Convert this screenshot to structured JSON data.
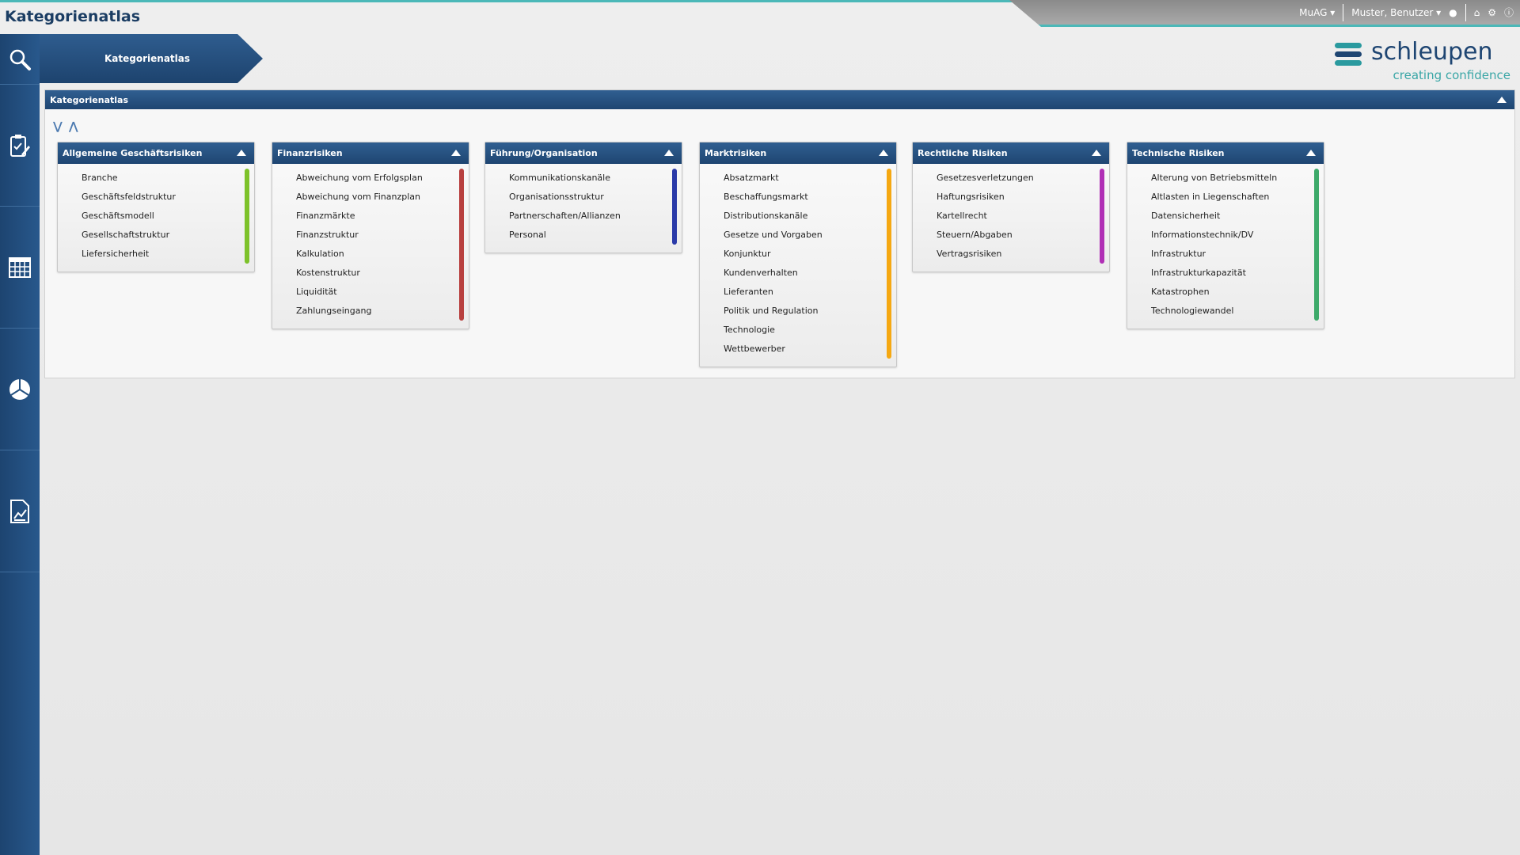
{
  "app_title": "Kategorienatlas",
  "topbar": {
    "company": "MuAG",
    "user": "Muster, Benutzer",
    "icons": [
      "user-icon",
      "home-icon",
      "gear-icon",
      "info-icon"
    ]
  },
  "breadcrumb": "Kategorienatlas",
  "logo": {
    "name": "schleupen",
    "tagline": "creating confidence"
  },
  "sidebar": {
    "icons": [
      "search-icon",
      "clipboard-edit-icon",
      "table-icon",
      "pie-chart-icon",
      "report-chart-icon"
    ]
  },
  "panel": {
    "title": "Kategorienatlas",
    "expand_all": "expand-all-icon",
    "collapse_all": "collapse-all-icon"
  },
  "categories": [
    {
      "title": "Allgemeine Geschäftsrisiken",
      "color": "#7dc22a",
      "items": [
        "Branche",
        "Geschäftsfeldstruktur",
        "Geschäftsmodell",
        "Gesellschaftstruktur",
        "Liefersicherheit"
      ]
    },
    {
      "title": "Finanzrisiken",
      "color": "#b8403f",
      "items": [
        "Abweichung vom Erfolgsplan",
        "Abweichung vom Finanzplan",
        "Finanzmärkte",
        "Finanzstruktur",
        "Kalkulation",
        "Kostenstruktur",
        "Liquidität",
        "Zahlungseingang"
      ]
    },
    {
      "title": "Führung/Organisation",
      "color": "#2a3aa8",
      "items": [
        "Kommunikationskanäle",
        "Organisationsstruktur",
        "Partnerschaften/Allianzen",
        "Personal"
      ]
    },
    {
      "title": "Marktrisiken",
      "color": "#f5a812",
      "items": [
        "Absatzmarkt",
        "Beschaffungsmarkt",
        "Distributionskanäle",
        "Gesetze und Vorgaben",
        "Konjunktur",
        "Kundenverhalten",
        "Lieferanten",
        "Politik und Regulation",
        "Technologie",
        "Wettbewerber"
      ]
    },
    {
      "title": "Rechtliche Risiken",
      "color": "#b02fb5",
      "items": [
        "Gesetzesverletzungen",
        "Haftungsrisiken",
        "Kartellrecht",
        "Steuern/Abgaben",
        "Vertragsrisiken"
      ]
    },
    {
      "title": "Technische Risiken",
      "color": "#3daa6a",
      "items": [
        "Alterung von Betriebsmitteln",
        "Altlasten in Liegenschaften",
        "Datensicherheit",
        "Informationstechnik/DV",
        "Infrastruktur",
        "Infrastrukturkapazität",
        "Katastrophen",
        "Technologiewandel"
      ]
    }
  ]
}
